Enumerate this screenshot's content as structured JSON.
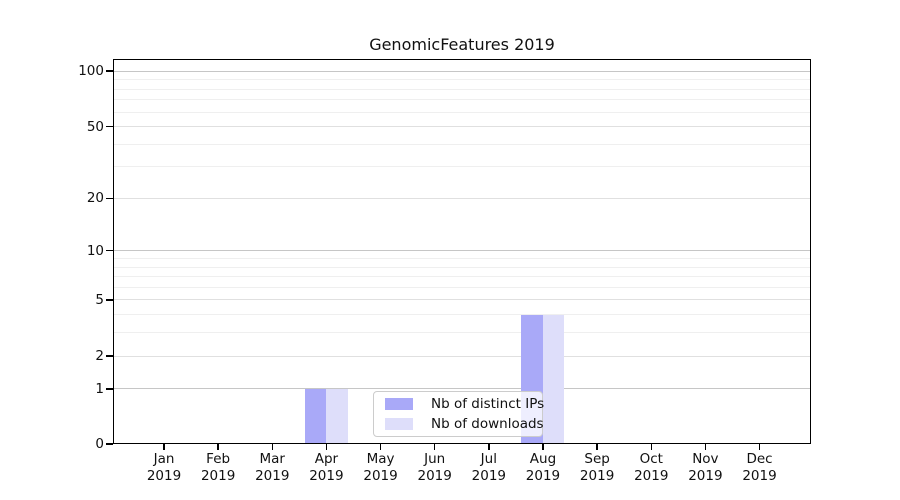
{
  "chart_data": {
    "type": "bar",
    "title": "GenomicFeatures 2019",
    "categories": [
      {
        "month": "Jan",
        "year": "2019"
      },
      {
        "month": "Feb",
        "year": "2019"
      },
      {
        "month": "Mar",
        "year": "2019"
      },
      {
        "month": "Apr",
        "year": "2019"
      },
      {
        "month": "May",
        "year": "2019"
      },
      {
        "month": "Jun",
        "year": "2019"
      },
      {
        "month": "Jul",
        "year": "2019"
      },
      {
        "month": "Aug",
        "year": "2019"
      },
      {
        "month": "Sep",
        "year": "2019"
      },
      {
        "month": "Oct",
        "year": "2019"
      },
      {
        "month": "Nov",
        "year": "2019"
      },
      {
        "month": "Dec",
        "year": "2019"
      }
    ],
    "series": [
      {
        "name": "Nb of distinct IPs",
        "color": "#a9a9f8",
        "values": [
          0,
          0,
          0,
          1,
          0,
          0,
          0,
          4,
          0,
          0,
          0,
          0
        ]
      },
      {
        "name": "Nb of downloads",
        "color": "#dedefa",
        "values": [
          0,
          0,
          0,
          1,
          0,
          0,
          0,
          4,
          0,
          0,
          0,
          0
        ]
      }
    ],
    "y_axis": {
      "scale": "log1p",
      "ticks": [
        0,
        1,
        2,
        5,
        10,
        20,
        50,
        100
      ],
      "minor_gridlines": [
        3,
        4,
        6,
        7,
        8,
        9,
        30,
        40,
        60,
        70,
        80,
        90
      ],
      "range": [
        0,
        116
      ]
    },
    "xlabel": "",
    "ylabel": "",
    "grid": "horizontal",
    "legend_position": "lower center"
  },
  "colors": {
    "major_grid": "#c6c6c6",
    "mid_grid": "#e0e0e0",
    "minor_grid": "#efefef",
    "axis": "#000000",
    "text": "#111111",
    "legend_border": "#cccccc",
    "background": "#ffffff"
  }
}
